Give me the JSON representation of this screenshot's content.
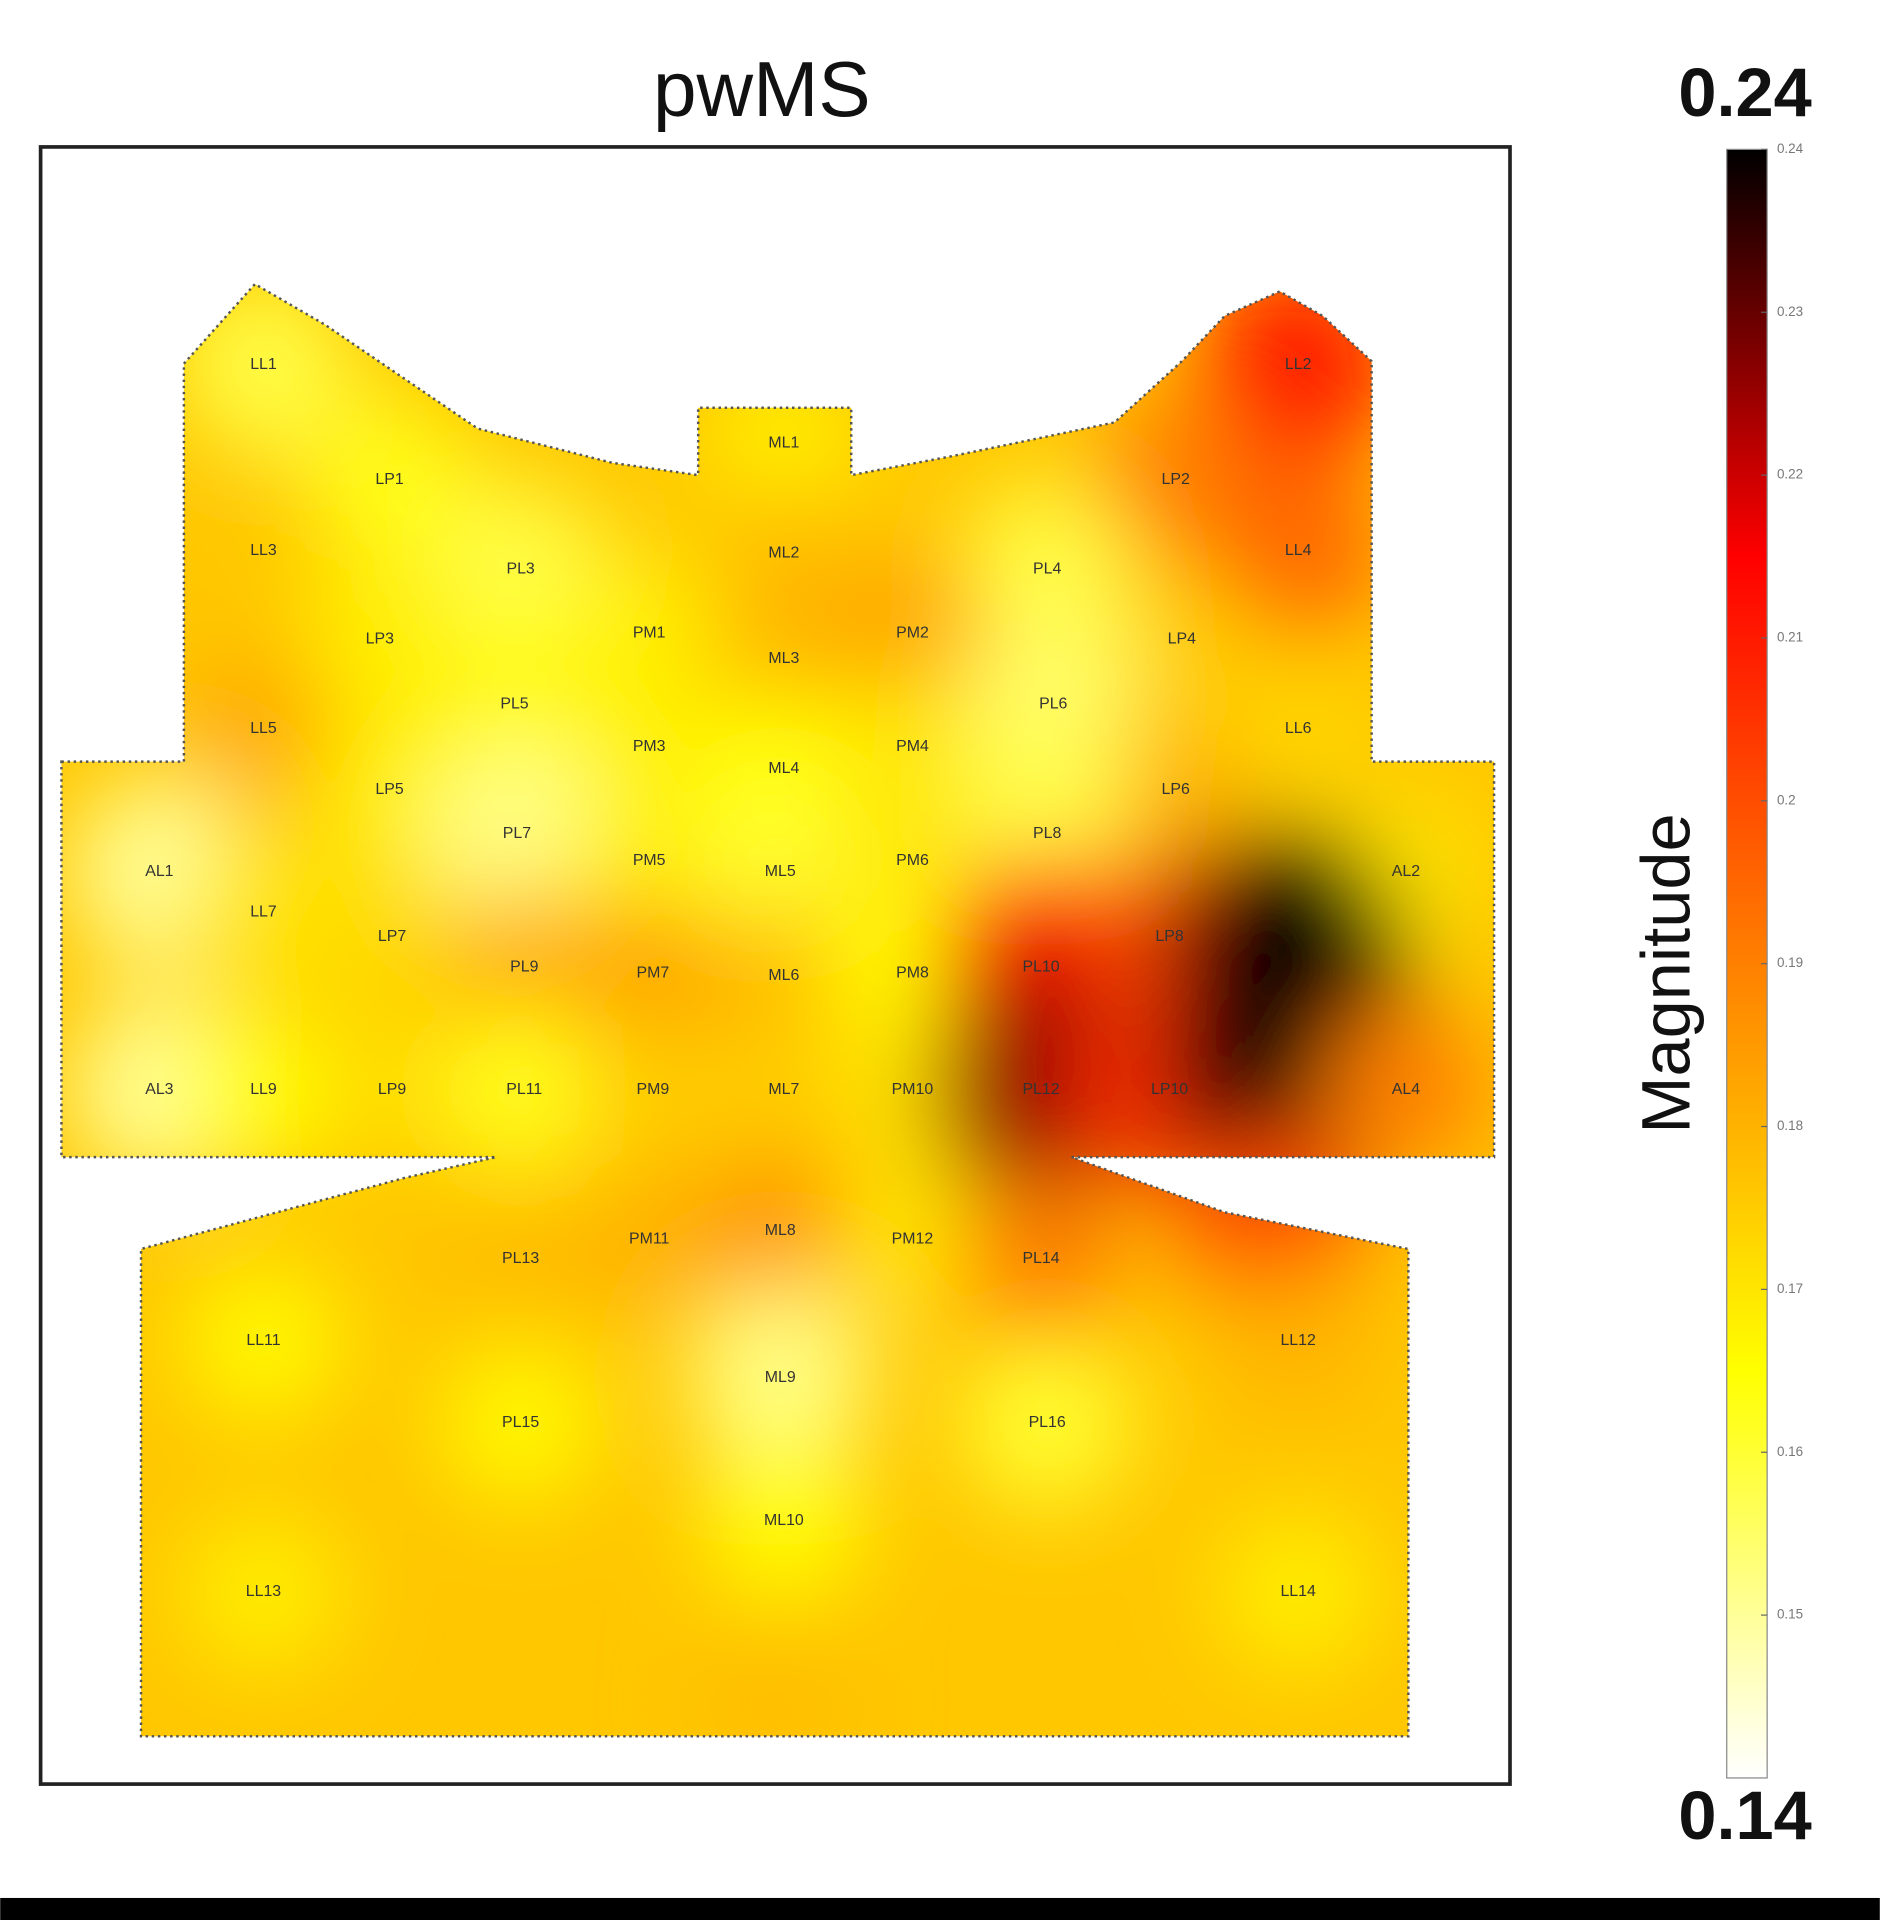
{
  "chart_data": {
    "type": "heatmap",
    "title": "pwMS",
    "colorbar_label": "Magnitude",
    "clim": [
      0.14,
      0.24
    ],
    "cticks": [
      0.15,
      0.16,
      0.17,
      0.18,
      0.19,
      0.2,
      0.21,
      0.22,
      0.23,
      0.24
    ],
    "colormap": [
      "#ffffff",
      "#ffff00",
      "#ff8000",
      "#ff0000",
      "#000000"
    ],
    "sensors": [
      {
        "name": "LL1",
        "value": 0.158
      },
      {
        "name": "LL2",
        "value": 0.21
      },
      {
        "name": "LP1",
        "value": 0.163
      },
      {
        "name": "ML1",
        "value": 0.168
      },
      {
        "name": "LP2",
        "value": 0.19
      },
      {
        "name": "LL3",
        "value": 0.176
      },
      {
        "name": "PL3",
        "value": 0.158
      },
      {
        "name": "ML2",
        "value": 0.178
      },
      {
        "name": "PL4",
        "value": 0.158
      },
      {
        "name": "LL4",
        "value": 0.195
      },
      {
        "name": "LP3",
        "value": 0.168
      },
      {
        "name": "PM1",
        "value": 0.168
      },
      {
        "name": "ML3",
        "value": 0.18
      },
      {
        "name": "PM2",
        "value": 0.183
      },
      {
        "name": "LP4",
        "value": 0.175
      },
      {
        "name": "LL5",
        "value": 0.182
      },
      {
        "name": "PL5",
        "value": 0.166
      },
      {
        "name": "PM3",
        "value": 0.168
      },
      {
        "name": "ML4",
        "value": 0.165
      },
      {
        "name": "PM4",
        "value": 0.17
      },
      {
        "name": "PL6",
        "value": 0.155
      },
      {
        "name": "LL6",
        "value": 0.173
      },
      {
        "name": "LP5",
        "value": 0.168
      },
      {
        "name": "PL7",
        "value": 0.152
      },
      {
        "name": "LP6",
        "value": 0.18
      },
      {
        "name": "AL1",
        "value": 0.15
      },
      {
        "name": "PM5",
        "value": 0.168
      },
      {
        "name": "ML5",
        "value": 0.16
      },
      {
        "name": "PM6",
        "value": 0.17
      },
      {
        "name": "PL8",
        "value": 0.158
      },
      {
        "name": "AL2",
        "value": 0.17
      },
      {
        "name": "LL7",
        "value": 0.17
      },
      {
        "name": "LP7",
        "value": 0.172
      },
      {
        "name": "PL9",
        "value": 0.182
      },
      {
        "name": "PM7",
        "value": 0.183
      },
      {
        "name": "ML6",
        "value": 0.178
      },
      {
        "name": "PM8",
        "value": 0.165
      },
      {
        "name": "PL10",
        "value": 0.215
      },
      {
        "name": "LP8",
        "value": 0.2
      },
      {
        "name": null,
        "value": 0.24
      },
      {
        "name": "AL3",
        "value": 0.15
      },
      {
        "name": "LL9",
        "value": 0.165
      },
      {
        "name": "LP9",
        "value": 0.172
      },
      {
        "name": "PL11",
        "value": 0.162
      },
      {
        "name": "PM9",
        "value": 0.175
      },
      {
        "name": "ML7",
        "value": 0.175
      },
      {
        "name": "PM10",
        "value": 0.17
      },
      {
        "name": "PL12",
        "value": 0.225
      },
      {
        "name": "LP10",
        "value": 0.205
      },
      {
        "name": null,
        "value": 0.24
      },
      {
        "name": "AL4",
        "value": 0.19
      },
      {
        "name": "PL13",
        "value": 0.178
      },
      {
        "name": "PM11",
        "value": 0.18
      },
      {
        "name": "ML8",
        "value": 0.186
      },
      {
        "name": "PM12",
        "value": 0.17
      },
      {
        "name": "PL14",
        "value": 0.19
      },
      {
        "name": null,
        "value": 0.2
      },
      {
        "name": "LL11",
        "value": 0.166
      },
      {
        "name": "LL12",
        "value": 0.18
      },
      {
        "name": "PL15",
        "value": 0.166
      },
      {
        "name": "ML9",
        "value": 0.152
      },
      {
        "name": "PL16",
        "value": 0.16
      },
      {
        "name": "ML10",
        "value": 0.165
      },
      {
        "name": "LL13",
        "value": 0.168
      },
      {
        "name": "LL14",
        "value": 0.168
      },
      {
        "name": null,
        "value": 0.178
      }
    ]
  }
}
